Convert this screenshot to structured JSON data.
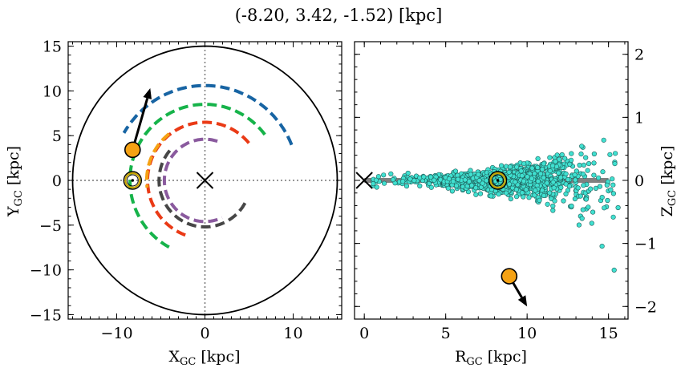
{
  "chart_data": [
    {
      "type": "scatter",
      "title": "(-8.20, 3.42, -1.52) [kpc]",
      "xlabel": "X",
      "xlabel_sub": "GC",
      "xlabel_unit": " [kpc]",
      "ylabel": "Y",
      "ylabel_sub": "GC",
      "ylabel_unit": " [kpc]",
      "xlim": [
        -15.5,
        15.5
      ],
      "ylim": [
        -15.5,
        15.5
      ],
      "xticks": [
        {
          "v": -10,
          "label": "−10"
        },
        {
          "v": 0,
          "label": "0"
        },
        {
          "v": 10,
          "label": "10"
        }
      ],
      "yticks": [
        {
          "v": -15,
          "label": "−15"
        },
        {
          "v": -10,
          "label": "−10"
        },
        {
          "v": -5,
          "label": "−5"
        },
        {
          "v": 0,
          "label": "0"
        },
        {
          "v": 5,
          "label": "5"
        },
        {
          "v": 10,
          "label": "10"
        },
        {
          "v": 15,
          "label": "15"
        }
      ],
      "disk_radius": 15,
      "galactic_center": [
        0,
        0
      ],
      "sun": [
        -8.2,
        0
      ],
      "object": [
        -8.2,
        3.42
      ],
      "velocity_arrow_end": [
        -6.2,
        10.3
      ],
      "arcs": [
        {
          "color": "#1764a3",
          "r": 10.6,
          "a0": 22,
          "a1": 150
        },
        {
          "color": "#16b34a",
          "r": 8.5,
          "a0": 37,
          "a1": 244
        },
        {
          "color": "#ea3a16",
          "r": 6.5,
          "a0": 40,
          "a1": 254
        },
        {
          "color": "#8a5a9e",
          "r": 4.6,
          "a0": 72,
          "a1": 295
        },
        {
          "color": "#474747",
          "r": 5.2,
          "a0": 140,
          "a1": 335
        },
        {
          "color": "#f5a214",
          "r": 6.6,
          "a0": 128,
          "a1": 187
        }
      ]
    },
    {
      "type": "scatter",
      "xlabel": "R",
      "xlabel_sub": "GC",
      "xlabel_unit": " [kpc]",
      "ylabel": "Z",
      "ylabel_sub": "GC",
      "ylabel_unit": " [kpc]",
      "xlim": [
        -0.6,
        16.2
      ],
      "ylim": [
        -2.2,
        2.2
      ],
      "xticks": [
        {
          "v": 0,
          "label": "0"
        },
        {
          "v": 5,
          "label": "5"
        },
        {
          "v": 10,
          "label": "10"
        },
        {
          "v": 15,
          "label": "15"
        }
      ],
      "yticks": [
        {
          "v": -2,
          "label": "−2"
        },
        {
          "v": -1,
          "label": "−1"
        },
        {
          "v": 0,
          "label": "0"
        },
        {
          "v": 1,
          "label": "1"
        },
        {
          "v": 2,
          "label": "2"
        }
      ],
      "disk_plane": {
        "z": 0,
        "r_range": [
          0,
          15
        ]
      },
      "galactic_center": [
        0,
        0
      ],
      "sun": [
        8.2,
        0
      ],
      "object": [
        8.9,
        -1.52
      ],
      "velocity_arrow_end": [
        10.0,
        -2.0
      ],
      "stars": {
        "count": 1500,
        "color": "#40e0d0",
        "r_range": [
          0.5,
          15.6
        ],
        "r_peak": 8.5,
        "z_spread_inner": 0.05,
        "z_spread_outer": 0.35
      }
    }
  ],
  "colors": {
    "object": "#f5a214",
    "sun_ring": "#c8a400",
    "velocity": "#000000",
    "grid_dotted": "#777777",
    "disk_plane": "#808080"
  }
}
